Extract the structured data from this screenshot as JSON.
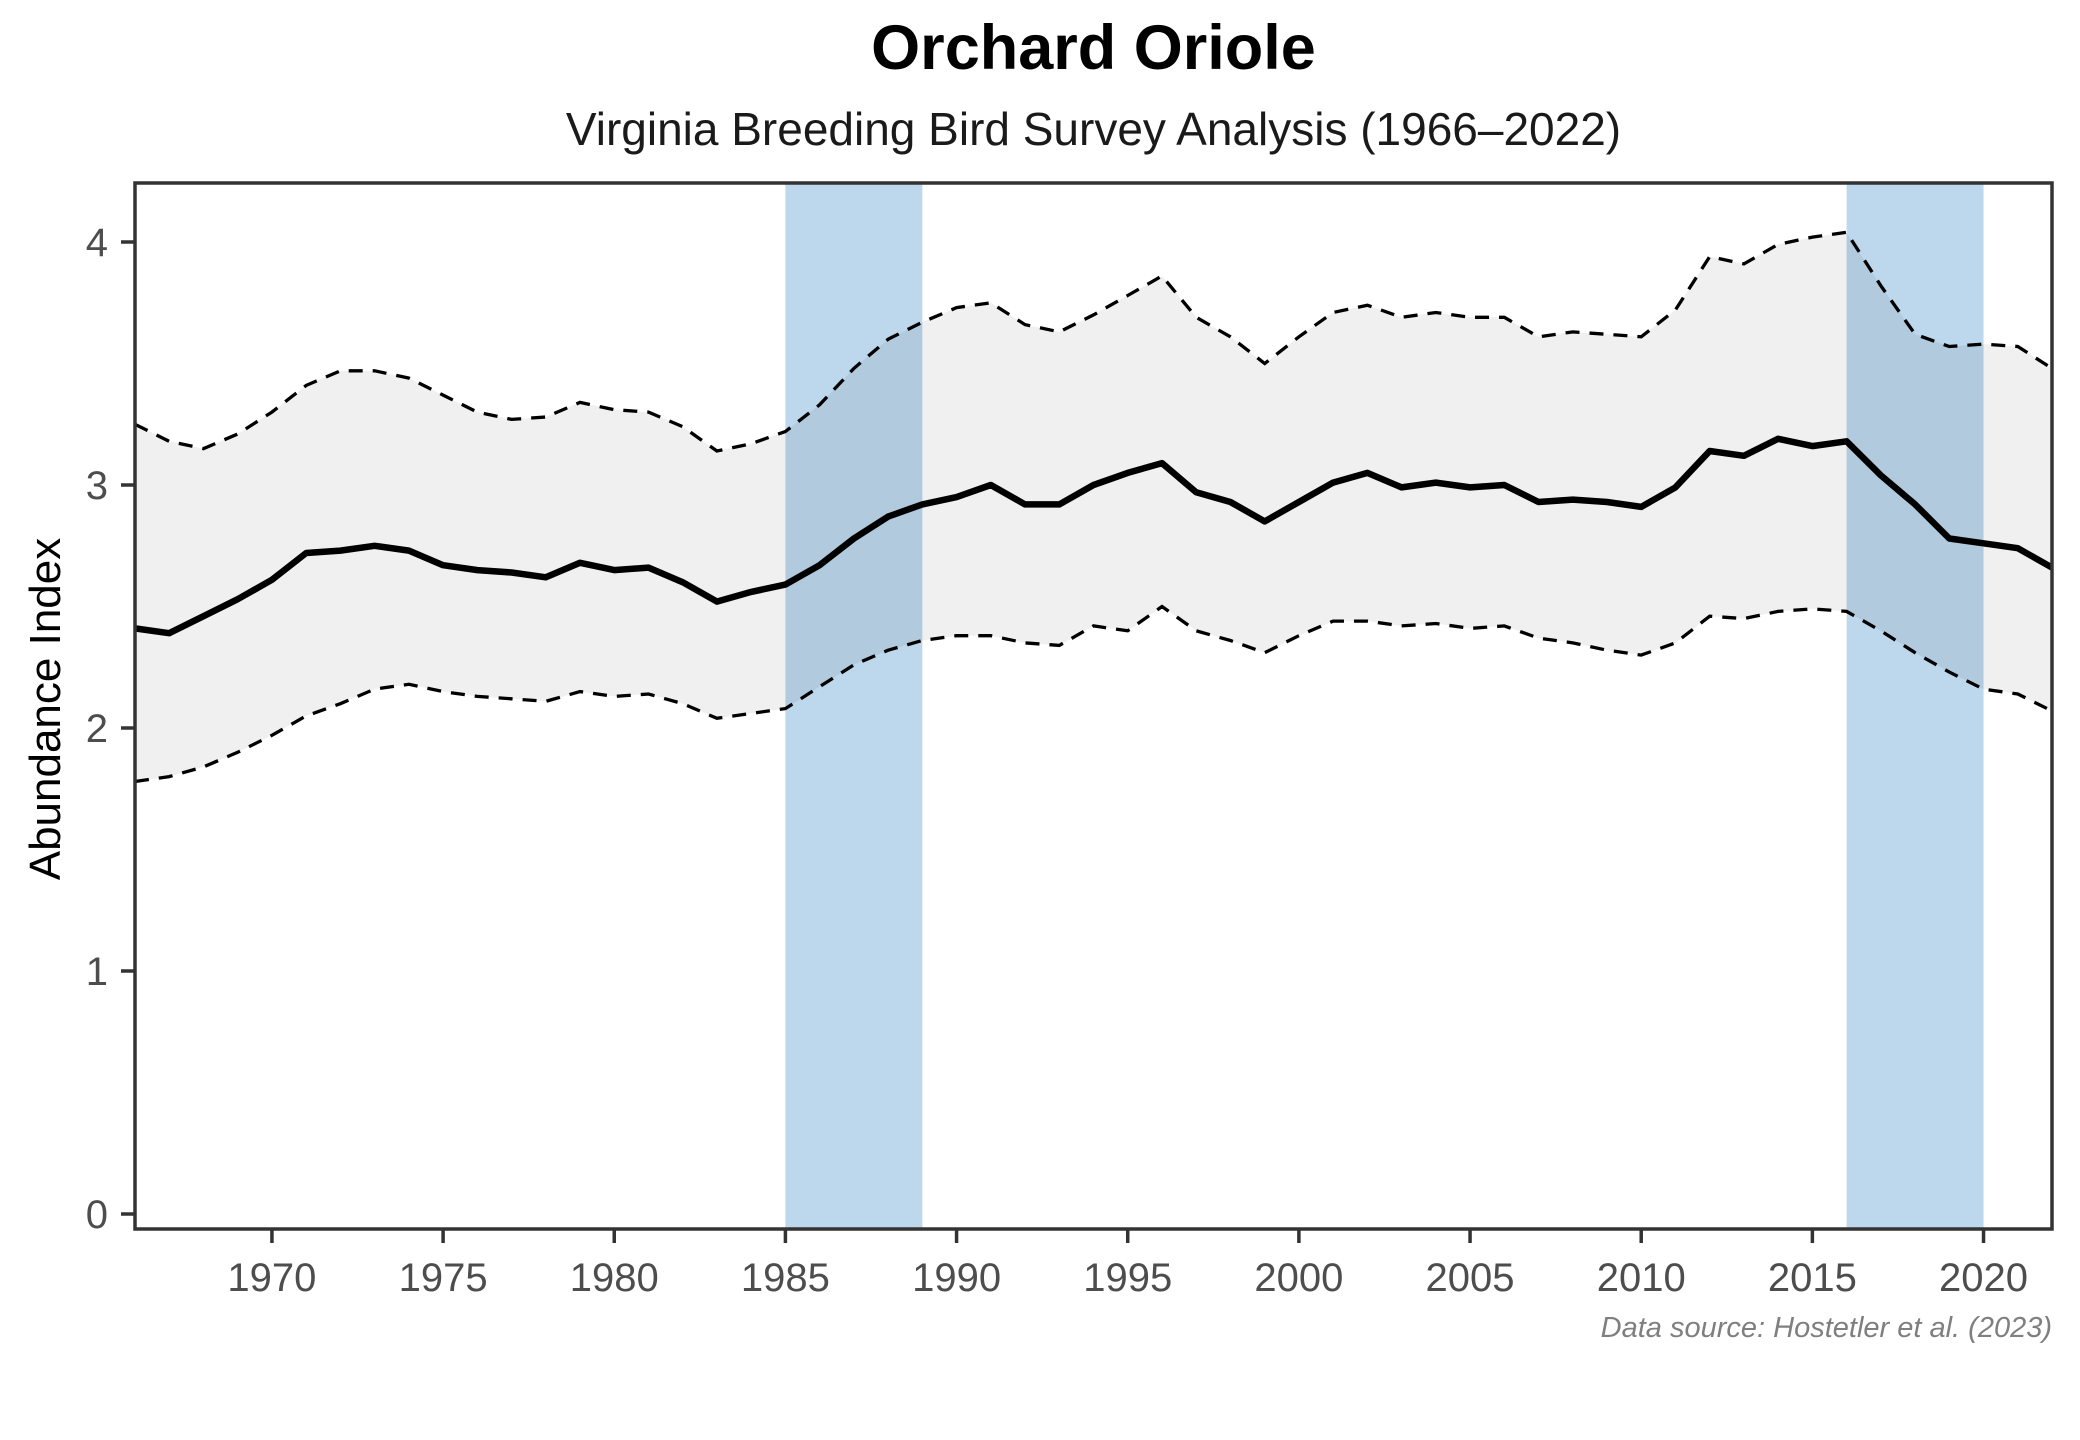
{
  "chart_data": {
    "type": "line",
    "title": "Orchard Oriole",
    "subtitle": "Virginia Breeding Bird Survey Analysis (1966–2022)",
    "caption": "Data source: Hostetler et al. (2023)",
    "xlabel": "",
    "ylabel": "Abundance Index",
    "xlim": [
      1966,
      2022
    ],
    "ylim": [
      0,
      4.24
    ],
    "x_ticks": [
      1970,
      1975,
      1980,
      1985,
      1990,
      1995,
      2000,
      2005,
      2010,
      2015,
      2020
    ],
    "y_ticks": [
      0,
      1,
      2,
      3,
      4
    ],
    "grid": "off",
    "legend": "none",
    "years": [
      1966,
      1967,
      1968,
      1969,
      1970,
      1971,
      1972,
      1973,
      1974,
      1975,
      1976,
      1977,
      1978,
      1979,
      1980,
      1981,
      1982,
      1983,
      1984,
      1985,
      1986,
      1987,
      1988,
      1989,
      1990,
      1991,
      1992,
      1993,
      1994,
      1995,
      1996,
      1997,
      1998,
      1999,
      2000,
      2001,
      2002,
      2003,
      2004,
      2005,
      2006,
      2007,
      2008,
      2009,
      2010,
      2011,
      2012,
      2013,
      2014,
      2015,
      2016,
      2017,
      2018,
      2019,
      2020,
      2021,
      2022
    ],
    "series": [
      {
        "name": "abundance_index",
        "style": "solid",
        "values": [
          2.41,
          2.39,
          2.46,
          2.53,
          2.61,
          2.72,
          2.73,
          2.75,
          2.73,
          2.67,
          2.65,
          2.64,
          2.62,
          2.68,
          2.65,
          2.66,
          2.6,
          2.52,
          2.56,
          2.59,
          2.67,
          2.78,
          2.87,
          2.92,
          2.95,
          3.0,
          2.92,
          2.92,
          3.0,
          3.05,
          3.09,
          2.97,
          2.93,
          2.85,
          2.93,
          3.01,
          3.05,
          2.99,
          3.01,
          2.99,
          3.0,
          2.93,
          2.94,
          2.93,
          2.91,
          2.99,
          3.14,
          3.12,
          3.19,
          3.16,
          3.18,
          3.04,
          2.92,
          2.78,
          2.76,
          2.74,
          2.66
        ]
      },
      {
        "name": "upper_ci",
        "style": "dashed",
        "values": [
          3.25,
          3.18,
          3.15,
          3.21,
          3.3,
          3.41,
          3.47,
          3.47,
          3.44,
          3.37,
          3.3,
          3.27,
          3.28,
          3.34,
          3.31,
          3.3,
          3.24,
          3.14,
          3.17,
          3.22,
          3.33,
          3.48,
          3.6,
          3.67,
          3.73,
          3.75,
          3.66,
          3.63,
          3.7,
          3.78,
          3.86,
          3.69,
          3.61,
          3.5,
          3.61,
          3.71,
          3.74,
          3.69,
          3.71,
          3.69,
          3.69,
          3.61,
          3.63,
          3.62,
          3.61,
          3.72,
          3.94,
          3.91,
          3.99,
          4.02,
          4.04,
          3.82,
          3.62,
          3.57,
          3.58,
          3.57,
          3.48
        ]
      },
      {
        "name": "lower_ci",
        "style": "dashed",
        "values": [
          1.78,
          1.8,
          1.84,
          1.9,
          1.97,
          2.05,
          2.1,
          2.16,
          2.18,
          2.15,
          2.13,
          2.12,
          2.11,
          2.15,
          2.13,
          2.14,
          2.1,
          2.04,
          2.06,
          2.08,
          2.17,
          2.26,
          2.32,
          2.36,
          2.38,
          2.38,
          2.35,
          2.34,
          2.42,
          2.4,
          2.5,
          2.4,
          2.36,
          2.31,
          2.38,
          2.44,
          2.44,
          2.42,
          2.43,
          2.41,
          2.42,
          2.37,
          2.35,
          2.32,
          2.3,
          2.35,
          2.46,
          2.45,
          2.48,
          2.49,
          2.48,
          2.4,
          2.31,
          2.23,
          2.16,
          2.14,
          2.07
        ]
      }
    ],
    "highlight_bands": [
      {
        "from": 1985,
        "to": 1989
      },
      {
        "from": 2016,
        "to": 2020
      }
    ],
    "colors": {
      "band": "#BDD7EC",
      "ribbon": "rgba(0,0,0,0.059)",
      "line": "#000000",
      "panel_border": "#333333",
      "tick": "#333333",
      "tick_label": "#4D4D4D"
    }
  }
}
